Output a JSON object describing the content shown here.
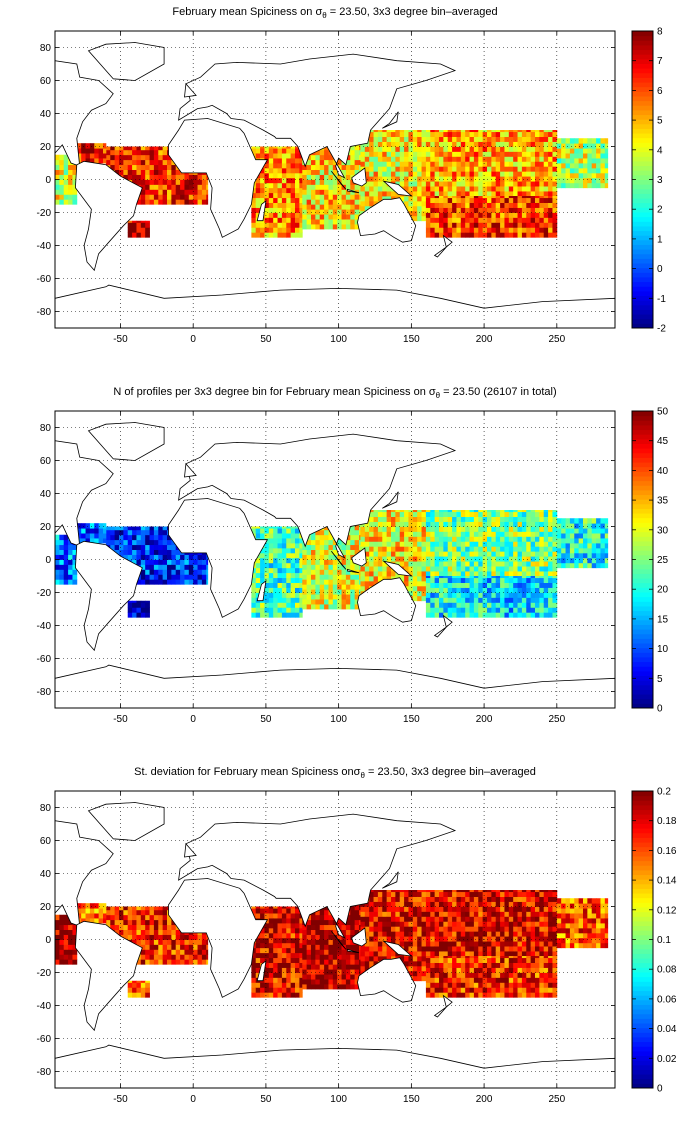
{
  "chart_data": [
    {
      "type": "heatmap",
      "title_pre": "February mean Spiciness on ",
      "title_sym": "σ",
      "title_sub": "θ",
      "title_post": " = 23.50, 3x3 degree bin–averaged",
      "xlim": [
        -95,
        290
      ],
      "ylim": [
        -90,
        90
      ],
      "xticks": [
        -50,
        0,
        50,
        100,
        150,
        200,
        250
      ],
      "yticks": [
        80,
        60,
        40,
        20,
        0,
        -20,
        -40,
        -60,
        -80
      ],
      "colorbar": {
        "min": -2,
        "max": 8,
        "ticks": [
          8,
          7,
          6,
          5,
          4,
          3,
          2,
          1,
          0,
          -1,
          -2
        ]
      },
      "grid": true,
      "bin_deg": 3,
      "colormap": "jet",
      "regions": [
        {
          "region": "tropical Atlantic",
          "lon": [
            -60,
            10
          ],
          "lat": [
            -15,
            20
          ],
          "value": 6.4
        },
        {
          "region": "Caribbean",
          "lon": [
            -80,
            -60
          ],
          "lat": [
            10,
            22
          ],
          "value": 6.6
        },
        {
          "region": "eastern tropical Pacific",
          "lon": [
            -95,
            -80
          ],
          "lat": [
            -15,
            15
          ],
          "value": 4.0
        },
        {
          "region": "southwest Atlantic",
          "lon": [
            -45,
            -30
          ],
          "lat": [
            -35,
            -25
          ],
          "value": 7.2
        },
        {
          "region": "western Indian Ocean",
          "lon": [
            40,
            75
          ],
          "lat": [
            -35,
            20
          ],
          "value": 5.4
        },
        {
          "region": "eastern Indian Ocean",
          "lon": [
            75,
            115
          ],
          "lat": [
            -30,
            25
          ],
          "value": 4.6
        },
        {
          "region": "western Pacific",
          "lon": [
            115,
            160
          ],
          "lat": [
            -25,
            30
          ],
          "value": 4.4
        },
        {
          "region": "central Pacific",
          "lon": [
            160,
            250
          ],
          "lat": [
            -10,
            30
          ],
          "value": 5.1
        },
        {
          "region": "South Pacific gyre",
          "lon": [
            160,
            250
          ],
          "lat": [
            -35,
            -10
          ],
          "value": 6.2
        },
        {
          "region": "eastern equatorial Pacific",
          "lon": [
            250,
            285
          ],
          "lat": [
            -5,
            25
          ],
          "value": 3.6
        }
      ]
    },
    {
      "type": "heatmap",
      "title_pre": "N of profiles per 3x3 degree bin for February mean Spiciness on ",
      "title_sym": "σ",
      "title_sub": "θ",
      "title_post": " = 23.50 (26107 in total)",
      "xlim": [
        -95,
        290
      ],
      "ylim": [
        -90,
        90
      ],
      "xticks": [
        -50,
        0,
        50,
        100,
        150,
        200,
        250
      ],
      "yticks": [
        80,
        60,
        40,
        20,
        0,
        -20,
        -40,
        -60,
        -80
      ],
      "colorbar": {
        "min": 0,
        "max": 50,
        "ticks": [
          50,
          45,
          40,
          35,
          30,
          25,
          20,
          15,
          10,
          5,
          0
        ]
      },
      "grid": true,
      "bin_deg": 3,
      "colormap": "jet",
      "regions": [
        {
          "region": "tropical Atlantic",
          "lon": [
            -60,
            10
          ],
          "lat": [
            -15,
            20
          ],
          "value": 8
        },
        {
          "region": "Caribbean",
          "lon": [
            -80,
            -60
          ],
          "lat": [
            10,
            22
          ],
          "value": 10
        },
        {
          "region": "eastern tropical Pacific",
          "lon": [
            -95,
            -80
          ],
          "lat": [
            -15,
            15
          ],
          "value": 12
        },
        {
          "region": "southwest Atlantic",
          "lon": [
            -45,
            -30
          ],
          "lat": [
            -35,
            -25
          ],
          "value": 4
        },
        {
          "region": "western Indian Ocean",
          "lon": [
            40,
            75
          ],
          "lat": [
            -35,
            20
          ],
          "value": 22
        },
        {
          "region": "eastern Indian Ocean",
          "lon": [
            75,
            115
          ],
          "lat": [
            -30,
            25
          ],
          "value": 30
        },
        {
          "region": "western Pacific",
          "lon": [
            115,
            160
          ],
          "lat": [
            -25,
            30
          ],
          "value": 32
        },
        {
          "region": "central Pacific",
          "lon": [
            160,
            250
          ],
          "lat": [
            -10,
            30
          ],
          "value": 25
        },
        {
          "region": "South Pacific gyre",
          "lon": [
            160,
            250
          ],
          "lat": [
            -35,
            -10
          ],
          "value": 18
        },
        {
          "region": "eastern equatorial Pacific",
          "lon": [
            250,
            285
          ],
          "lat": [
            -5,
            25
          ],
          "value": 20
        }
      ]
    },
    {
      "type": "heatmap",
      "title_pre": "St. deviation for February mean Spiciness on",
      "title_sym": "σ",
      "title_sub": "θ",
      "title_post": " = 23.50, 3x3 degree bin–averaged",
      "xlim": [
        -95,
        290
      ],
      "ylim": [
        -90,
        90
      ],
      "xticks": [
        -50,
        0,
        50,
        100,
        150,
        200,
        250
      ],
      "yticks": [
        80,
        60,
        40,
        20,
        0,
        -20,
        -40,
        -60,
        -80
      ],
      "colorbar": {
        "min": 0,
        "max": 0.2,
        "ticks": [
          0.2,
          0.18,
          0.16,
          0.14,
          0.12,
          0.1,
          0.08,
          0.06,
          0.04,
          0.02,
          0
        ]
      },
      "grid": true,
      "bin_deg": 3,
      "colormap": "jet",
      "regions": [
        {
          "region": "tropical Atlantic",
          "lon": [
            -60,
            10
          ],
          "lat": [
            -15,
            20
          ],
          "value": 0.17
        },
        {
          "region": "Caribbean",
          "lon": [
            -80,
            -60
          ],
          "lat": [
            10,
            22
          ],
          "value": 0.15
        },
        {
          "region": "eastern tropical Pacific",
          "lon": [
            -95,
            -80
          ],
          "lat": [
            -15,
            15
          ],
          "value": 0.19
        },
        {
          "region": "southwest Atlantic",
          "lon": [
            -45,
            -30
          ],
          "lat": [
            -35,
            -25
          ],
          "value": 0.16
        },
        {
          "region": "western Indian Ocean",
          "lon": [
            40,
            75
          ],
          "lat": [
            -35,
            20
          ],
          "value": 0.18
        },
        {
          "region": "eastern Indian Ocean",
          "lon": [
            75,
            115
          ],
          "lat": [
            -30,
            25
          ],
          "value": 0.19
        },
        {
          "region": "western Pacific",
          "lon": [
            115,
            160
          ],
          "lat": [
            -25,
            30
          ],
          "value": 0.18
        },
        {
          "region": "central Pacific",
          "lon": [
            160,
            250
          ],
          "lat": [
            -10,
            30
          ],
          "value": 0.18
        },
        {
          "region": "South Pacific gyre",
          "lon": [
            160,
            250
          ],
          "lat": [
            -35,
            -10
          ],
          "value": 0.17
        },
        {
          "region": "eastern equatorial Pacific",
          "lon": [
            250,
            285
          ],
          "lat": [
            -5,
            25
          ],
          "value": 0.16
        }
      ]
    }
  ]
}
